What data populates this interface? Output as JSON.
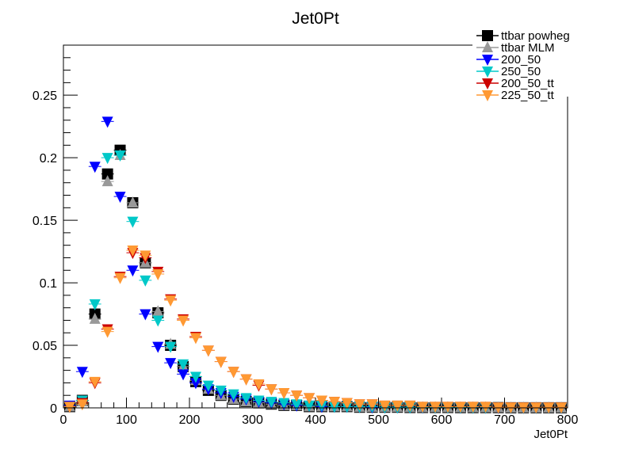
{
  "chart_data": {
    "type": "scatter",
    "title": "Jet0Pt",
    "xlabel": "Jet0Pt",
    "ylabel": "",
    "xlim": [
      0,
      800
    ],
    "ylim": [
      0,
      0.29
    ],
    "xticks": [
      0,
      100,
      200,
      300,
      400,
      500,
      600,
      700,
      800
    ],
    "xtick_labels": [
      "0",
      "100",
      "200",
      "300",
      "400",
      "500",
      "600",
      "700",
      "800"
    ],
    "yticks": [
      0,
      0.05,
      0.1,
      0.15,
      0.2,
      0.25
    ],
    "ytick_labels": [
      "0",
      "0.05",
      "0.1",
      "0.15",
      "0.2",
      "0.25"
    ],
    "legend_position": "top-right",
    "grid": false,
    "x": [
      10,
      30,
      50,
      70,
      90,
      110,
      130,
      150,
      170,
      190,
      210,
      230,
      250,
      270,
      290,
      310,
      330,
      350,
      370,
      390,
      410,
      430,
      450,
      470,
      490,
      510,
      530,
      550,
      570,
      590,
      610,
      630,
      650,
      670,
      690,
      710,
      730,
      750,
      770,
      790
    ],
    "series": [
      {
        "name": "ttbar powheg",
        "marker": "square",
        "color": "#000000",
        "values": [
          0.001,
          0.006,
          0.075,
          0.187,
          0.206,
          0.164,
          0.116,
          0.076,
          0.05,
          0.033,
          0.021,
          0.014,
          0.01,
          0.007,
          0.005,
          0.004,
          0.003,
          0.002,
          0.002,
          0.001,
          0.001,
          0.001,
          0.001,
          0.0005,
          0.0005,
          0.0005,
          0.0005,
          0.0003,
          0.0003,
          0.0003,
          0.0003,
          0.0002,
          0.0002,
          0.0002,
          0.0002,
          0.0001,
          0.0001,
          0.0001,
          0.0001,
          0.0001
        ]
      },
      {
        "name": "ttbar MLM",
        "marker": "triangle-up",
        "color": "#999999",
        "values": [
          0.001,
          0.005,
          0.071,
          0.181,
          0.202,
          0.164,
          0.116,
          0.077,
          0.051,
          0.033,
          0.022,
          0.015,
          0.01,
          0.007,
          0.005,
          0.004,
          0.003,
          0.002,
          0.002,
          0.001,
          0.001,
          0.001,
          0.001,
          0.0005,
          0.0005,
          0.0005,
          0.0005,
          0.0003,
          0.0003,
          0.0003,
          0.0003,
          0.0002,
          0.0002,
          0.0002,
          0.0002,
          0.0001,
          0.0001,
          0.0001,
          0.0001,
          0.0001
        ]
      },
      {
        "name": "200_50",
        "marker": "triangle-down",
        "color": "#0000ff",
        "values": [
          0.002,
          0.029,
          0.193,
          0.229,
          0.169,
          0.11,
          0.075,
          0.049,
          0.036,
          0.027,
          0.02,
          0.015,
          0.012,
          0.009,
          0.007,
          0.005,
          0.004,
          0.003,
          0.002,
          0.002,
          0.001,
          0.001,
          0.001,
          0.001,
          0.0005,
          0.0005,
          0.0005,
          0.0005,
          0.0003,
          0.0003,
          0.0003,
          0.0002,
          0.0002,
          0.0002,
          0.0001,
          0.0001,
          0.0001,
          0.0001,
          0.0001,
          0.0001
        ]
      },
      {
        "name": "250_50",
        "marker": "triangle-down",
        "color": "#00c8c8",
        "values": [
          0.001,
          0.006,
          0.083,
          0.2,
          0.202,
          0.149,
          0.102,
          0.07,
          0.049,
          0.035,
          0.025,
          0.018,
          0.014,
          0.011,
          0.008,
          0.006,
          0.005,
          0.004,
          0.003,
          0.002,
          0.002,
          0.001,
          0.001,
          0.001,
          0.001,
          0.0005,
          0.0005,
          0.0005,
          0.0005,
          0.0003,
          0.0003,
          0.0003,
          0.0002,
          0.0002,
          0.0002,
          0.0001,
          0.0001,
          0.0001,
          0.0001,
          0.0001
        ]
      },
      {
        "name": "200_50_tt",
        "marker": "triangle-down",
        "color": "#cc0000",
        "values": [
          0.001,
          0.004,
          0.02,
          0.063,
          0.105,
          0.124,
          0.12,
          0.109,
          0.087,
          0.071,
          0.057,
          0.046,
          0.037,
          0.029,
          0.023,
          0.018,
          0.015,
          0.012,
          0.01,
          0.008,
          0.006,
          0.005,
          0.004,
          0.003,
          0.003,
          0.002,
          0.002,
          0.002,
          0.001,
          0.001,
          0.001,
          0.001,
          0.001,
          0.001,
          0.0005,
          0.0005,
          0.0005,
          0.0005,
          0.0005,
          0.0005
        ]
      },
      {
        "name": "225_50_tt",
        "marker": "triangle-down",
        "color": "#ff9933",
        "values": [
          0.001,
          0.003,
          0.021,
          0.061,
          0.104,
          0.126,
          0.122,
          0.107,
          0.086,
          0.07,
          0.056,
          0.046,
          0.037,
          0.029,
          0.023,
          0.019,
          0.015,
          0.012,
          0.01,
          0.008,
          0.006,
          0.005,
          0.004,
          0.003,
          0.003,
          0.002,
          0.002,
          0.002,
          0.001,
          0.001,
          0.001,
          0.001,
          0.001,
          0.001,
          0.0005,
          0.0005,
          0.0005,
          0.0005,
          0.0005,
          0.0005
        ]
      }
    ]
  }
}
